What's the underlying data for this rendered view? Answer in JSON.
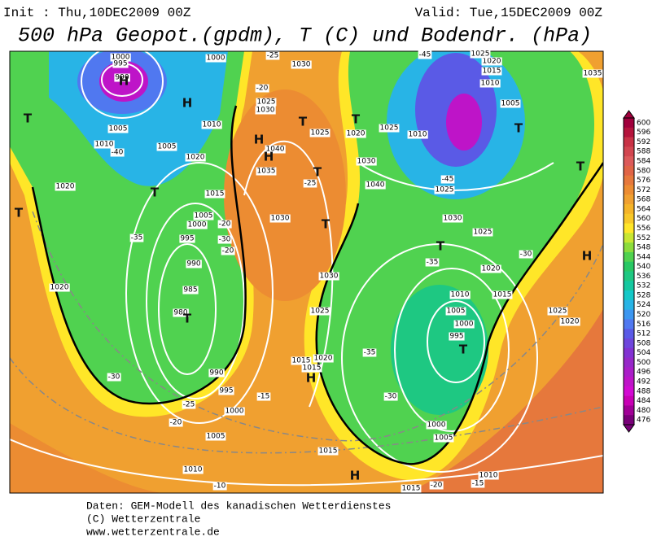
{
  "header": {
    "init": "Init : Thu,10DEC2009 00Z",
    "valid": "Valid: Tue,15DEC2009 00Z",
    "title": "500 hPa Geopot.(gpdm), T (C) und Bodendr. (hPa)"
  },
  "colorbar": {
    "levels": [
      600,
      596,
      592,
      588,
      584,
      580,
      576,
      572,
      568,
      564,
      560,
      556,
      552,
      548,
      544,
      540,
      536,
      532,
      528,
      524,
      520,
      516,
      512,
      508,
      504,
      500,
      496,
      492,
      488,
      484,
      480,
      476
    ],
    "colors": [
      "#a0003c",
      "#b4143c",
      "#c83246",
      "#d24650",
      "#dc5a5a",
      "#e06446",
      "#e6783c",
      "#ec8c32",
      "#f0a030",
      "#f5b428",
      "#f8c828",
      "#ffe628",
      "#c8e632",
      "#8cdc3c",
      "#50d250",
      "#28c864",
      "#1ec882",
      "#14c8a0",
      "#14c8c8",
      "#28b4e6",
      "#3c96f0",
      "#5078f0",
      "#5a5ae6",
      "#6e46dc",
      "#8232d2",
      "#9628c8",
      "#aa1ec8",
      "#be14c8",
      "#d20ad2",
      "#c800b4",
      "#a00096",
      "#780078"
    ]
  },
  "map": {
    "pressure_labels": [
      "1000",
      "995",
      "990",
      "1005",
      "1010",
      "1005",
      "1020",
      "1010",
      "1015",
      "1020",
      "1020",
      "1005",
      "1000",
      "995",
      "990",
      "985",
      "980",
      "990",
      "995",
      "1000",
      "1005",
      "1010",
      "1015",
      "1020",
      "1025",
      "1030",
      "1030",
      "1035",
      "1040",
      "1025",
      "1030",
      "1025",
      "1020",
      "1025",
      "1030",
      "1040",
      "1010",
      "1025",
      "1030",
      "1025",
      "1020",
      "1010",
      "1015",
      "1005",
      "1000",
      "995",
      "1000",
      "1005",
      "1015",
      "1015",
      "1025",
      "1020",
      "1010",
      "1015",
      "1005",
      "1010",
      "1015",
      "1020",
      "1025",
      "1030",
      "1035",
      "1000"
    ],
    "temperature_labels": [
      "-40",
      "-35",
      "-30",
      "-20",
      "-20",
      "-30",
      "-25",
      "-20",
      "-15",
      "-10",
      "-25",
      "-20",
      "-25",
      "-45",
      "-45",
      "-35",
      "-30",
      "-35",
      "-30",
      "-20",
      "-15"
    ],
    "centers": [
      "T",
      "T",
      "T",
      "T",
      "T",
      "T",
      "T",
      "T",
      "T",
      "T",
      "T",
      "T",
      "H",
      "H",
      "H",
      "H",
      "H",
      "H",
      "H"
    ]
  },
  "footer": [
    "Daten: GEM-Modell des kanadischen Wetterdienstes",
    "(C) Wetterzentrale",
    "www.wetterzentrale.de"
  ]
}
